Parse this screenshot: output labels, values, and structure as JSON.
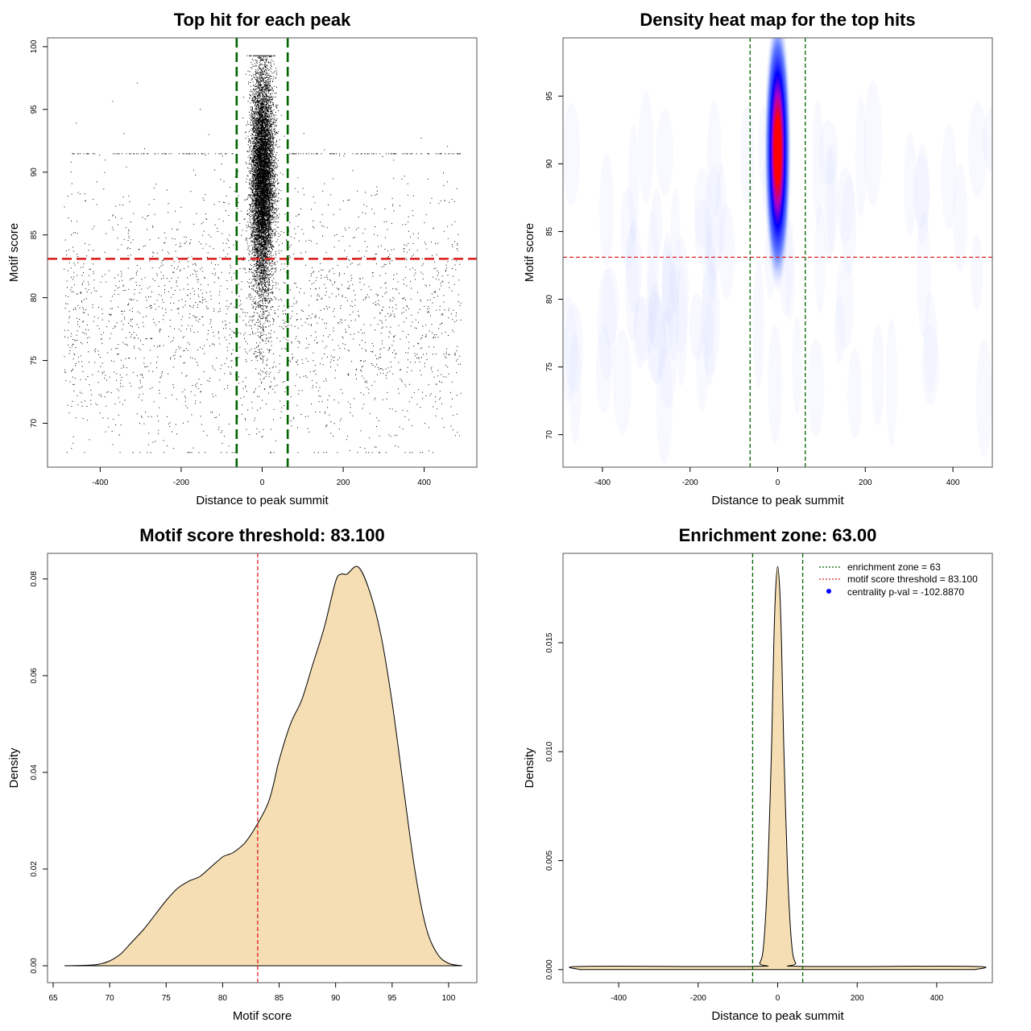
{
  "chart_data": [
    {
      "type": "scatter",
      "title": "Top hit for each peak",
      "xlabel": "Distance to peak summit",
      "ylabel": "Motif score",
      "xlim": [
        -530,
        530
      ],
      "ylim": [
        66.5,
        100.7
      ],
      "xticks": [
        -400,
        -200,
        0,
        200,
        400
      ],
      "yticks": [
        70,
        75,
        80,
        85,
        90,
        95,
        100
      ],
      "xtick_labels": [
        "-400",
        "-200",
        "0",
        "200",
        "400"
      ],
      "ytick_labels": [
        "70",
        "75",
        "80",
        "85",
        "90",
        "95",
        "100"
      ],
      "point_groups": [
        {
          "name": "",
          "x_range": [
            -60,
            60
          ],
          "x_sd": 14,
          "y_mean": 89.5,
          "y_sd": 4.2,
          "y_range": [
            69,
            99.3
          ],
          "approx_count": 9000
        },
        {
          "name": "",
          "x_range": [
            -490,
            490
          ],
          "y_range": [
            67.7,
            97.5
          ],
          "approx_count": 2400
        },
        {
          "name": "",
          "x_range": [
            -470,
            490
          ],
          "y": 91.5,
          "approx_count": 200
        }
      ],
      "hlines": [
        {
          "y": 83.1,
          "color": "#dd2222",
          "style": "dashed"
        }
      ],
      "vlines": [
        {
          "x": -63,
          "color": "#006400",
          "style": "dashed"
        },
        {
          "x": 63,
          "color": "#006400",
          "style": "dashed"
        }
      ],
      "grid": false
    },
    {
      "type": "heatmap",
      "title": "Density heat map for the top hits",
      "xlabel": "Distance to peak summit",
      "ylabel": "Motif score",
      "xlim": [
        -490,
        490
      ],
      "ylim": [
        67.6,
        99.3
      ],
      "xticks": [
        -400,
        -200,
        0,
        200,
        400
      ],
      "yticks": [
        70,
        75,
        80,
        85,
        90,
        95
      ],
      "xtick_labels": [
        "-400",
        "-200",
        "0",
        "200",
        "400"
      ],
      "ytick_labels": [
        "70",
        "75",
        "80",
        "85",
        "90",
        "95"
      ],
      "density_peak": {
        "x": 0,
        "y": 91,
        "x_spread": 14,
        "y_spread": 4.5
      },
      "colors": {
        "low": "#ffffff",
        "mid": "#0000ff",
        "high": "#ff0000"
      },
      "hlines": [
        {
          "y": 83.1,
          "color": "#dd2222",
          "style": "dashed"
        }
      ],
      "vlines": [
        {
          "x": -63,
          "color": "#006400",
          "style": "dashed"
        },
        {
          "x": 63,
          "color": "#006400",
          "style": "dashed"
        }
      ],
      "grid": false
    },
    {
      "type": "area",
      "title": "Motif score threshold: 83.100",
      "xlabel": "Motif score",
      "ylabel": "Density",
      "xlim": [
        64.5,
        102.5
      ],
      "ylim": [
        -0.0035,
        0.0853
      ],
      "xticks": [
        65,
        70,
        75,
        80,
        85,
        90,
        95,
        100
      ],
      "yticks": [
        0.0,
        0.02,
        0.04,
        0.06,
        0.08
      ],
      "xtick_labels": [
        "65",
        "70",
        "75",
        "80",
        "85",
        "90",
        "95",
        "100"
      ],
      "ytick_labels": [
        "0.00",
        "0.02",
        "0.04",
        "0.06",
        "0.08"
      ],
      "x": [
        66,
        68,
        69,
        70,
        71,
        72,
        73,
        74,
        75,
        76,
        77,
        78,
        79,
        80,
        80.5,
        81,
        82,
        83,
        84,
        84.5,
        85,
        86,
        87,
        88,
        89,
        90,
        90.5,
        91,
        92,
        93,
        94,
        95,
        96,
        97,
        98,
        99,
        100,
        101.2
      ],
      "y": [
        0.0,
        0.0001,
        0.0003,
        0.001,
        0.0025,
        0.005,
        0.0075,
        0.0105,
        0.0135,
        0.016,
        0.0175,
        0.0185,
        0.0205,
        0.0225,
        0.023,
        0.0235,
        0.0255,
        0.029,
        0.0335,
        0.0375,
        0.0425,
        0.05,
        0.055,
        0.0625,
        0.07,
        0.0795,
        0.081,
        0.081,
        0.0825,
        0.0775,
        0.0685,
        0.0545,
        0.037,
        0.02,
        0.008,
        0.0025,
        0.0005,
        0.0
      ],
      "fill": "#f5deb3",
      "vlines": [
        {
          "x": 83.1,
          "color": "#dd2222",
          "style": "dashed"
        }
      ],
      "grid": false
    },
    {
      "type": "area",
      "title": "Enrichment zone: 63.00",
      "xlabel": "Distance to peak summit",
      "ylabel": "Density",
      "xlim": [
        -540,
        540
      ],
      "ylim": [
        -0.0006,
        0.0191
      ],
      "xticks": [
        -400,
        -200,
        0,
        200,
        400
      ],
      "yticks": [
        0.0,
        0.005,
        0.01,
        0.015
      ],
      "xtick_labels": [
        "-400",
        "-200",
        "0",
        "200",
        "400"
      ],
      "ytick_labels": [
        "0.000",
        "0.005",
        "0.010",
        "0.015"
      ],
      "x": [
        -497,
        -490,
        -60,
        -45,
        -35,
        -25,
        -15,
        -10,
        -5,
        0,
        5,
        10,
        15,
        25,
        35,
        45,
        60,
        490,
        497
      ],
      "y": [
        0.0,
        0.00015,
        0.00015,
        0.0003,
        0.0012,
        0.0045,
        0.0105,
        0.0148,
        0.0175,
        0.0185,
        0.0175,
        0.0148,
        0.0105,
        0.0045,
        0.0012,
        0.0003,
        0.00015,
        0.00015,
        0.0
      ],
      "fill": "#f5deb3",
      "vlines": [
        {
          "x": -63,
          "color": "#006400",
          "style": "dashed"
        },
        {
          "x": 63,
          "color": "#006400",
          "style": "dashed"
        }
      ],
      "legend": {
        "position": "top-right",
        "entries": [
          {
            "label": "enrichment zone = 63",
            "color": "#006400",
            "kind": "dotted-line"
          },
          {
            "label": "motif score threshold = 83.100",
            "color": "#dd2222",
            "kind": "dotted-line"
          },
          {
            "label": "centrality p-val = -102.8870",
            "color": "#0000ff",
            "kind": "point"
          }
        ]
      },
      "grid": false
    }
  ]
}
